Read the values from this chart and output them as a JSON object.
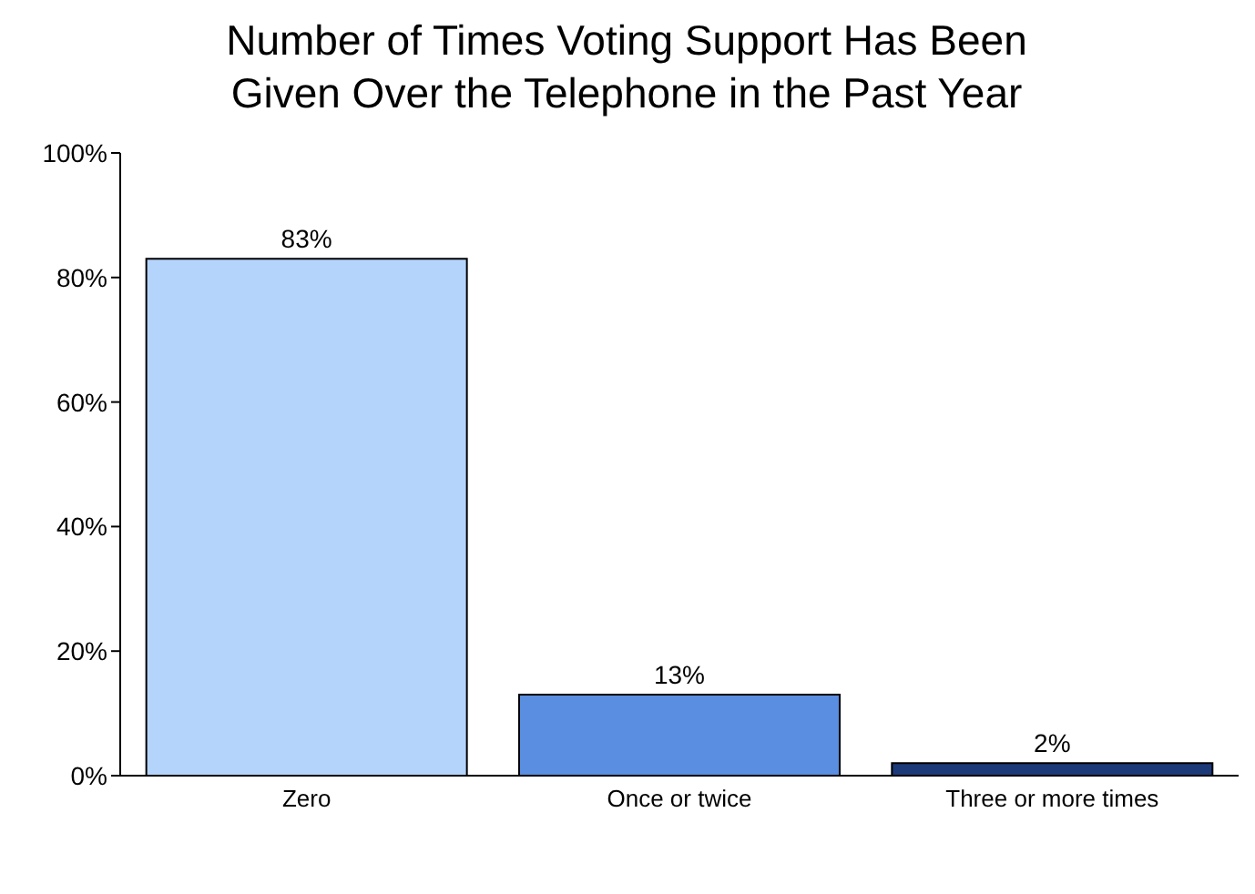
{
  "chart_data": {
    "type": "bar",
    "title": "Number of Times Voting Support Has Been Given Over the Telephone in the Past Year",
    "categories": [
      "Zero",
      "Once or twice",
      "Three or more times"
    ],
    "values": [
      83,
      13,
      2
    ],
    "colors": [
      "#b4d4fc",
      "#5a8ee0",
      "#1c3a78"
    ],
    "value_labels": [
      "83%",
      "13%",
      "2%"
    ],
    "ylim": [
      0,
      100
    ],
    "yticks": [
      {
        "value": 0,
        "label": "0%"
      },
      {
        "value": 20,
        "label": "20%"
      },
      {
        "value": 40,
        "label": "40%"
      },
      {
        "value": 60,
        "label": "60%"
      },
      {
        "value": 80,
        "label": "80%"
      },
      {
        "value": 100,
        "label": "100%"
      }
    ],
    "grid": false,
    "legend": false
  }
}
